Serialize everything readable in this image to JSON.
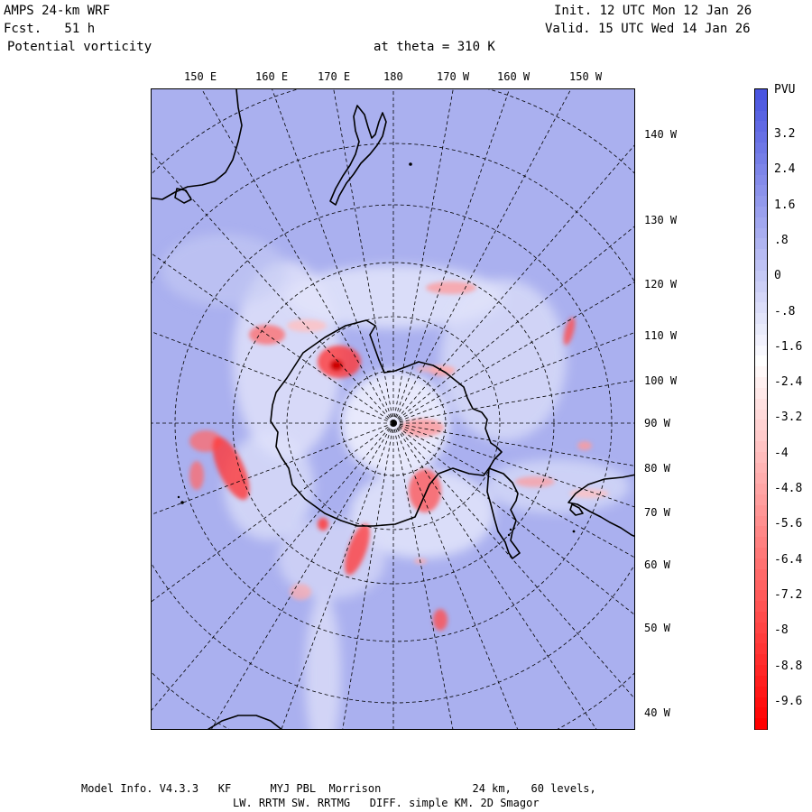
{
  "header": {
    "model": "AMPS 24-km WRF",
    "forecast": "Fcst.   51 h",
    "field": "Potential vorticity",
    "level": "at theta = 310 K",
    "init": "Init. 12 UTC Mon 12 Jan 26",
    "valid": "Valid. 15 UTC Wed 14 Jan 26"
  },
  "map": {
    "projection": "south polar stereographic",
    "top_longitudes": [
      "150 E",
      "160 E",
      "170 E",
      "180",
      "170 W",
      "160 W",
      "150 W"
    ],
    "right_longitudes": [
      "140 W",
      "130 W",
      "120 W",
      "110 W",
      "100 W",
      "90 W",
      "80 W",
      "70 W",
      "60 W",
      "50 W",
      "40 W"
    ],
    "background_color": "#aab0ef",
    "positive_color": "#ff0000",
    "coastline_color": "#000000",
    "graticule_style": "dashed"
  },
  "colorbar": {
    "unit": "PVU",
    "labels": [
      "3.2",
      "2.4",
      "1.6",
      ".8",
      "0",
      "-.8",
      "-1.6",
      "-2.4",
      "-3.2",
      "-4",
      "-4.8",
      "-5.6",
      "-6.4",
      "-7.2",
      "-8",
      "-8.8",
      "-9.6"
    ],
    "top_color": "#4a55e0",
    "middle_color": "#ffffff",
    "bottom_color": "#ff0000"
  },
  "footer": {
    "line1": "Model Info. V4.3.3   KF      MYJ PBL  Morrison              24 km,   60 levels,",
    "line2": "LW. RRTM SW. RRTMG   DIFF. simple KM. 2D Smagor"
  }
}
